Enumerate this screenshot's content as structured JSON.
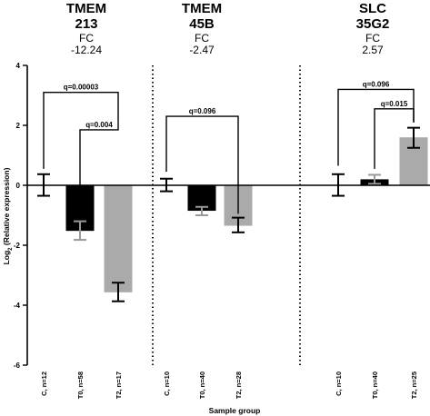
{
  "chart_data": {
    "type": "bar",
    "ylabel_prefix": "Log",
    "ylabel_sub": "2",
    "ylabel_suffix": " (Relative expression)",
    "xlabel": "Sample group",
    "ylim": [
      -6,
      4
    ],
    "yticks": [
      4,
      2,
      0,
      -2,
      -4,
      -6
    ],
    "grid": false,
    "panels": [
      {
        "title_line1": "TMEM",
        "title_line2": "213",
        "fc_label": "FC",
        "fc_value": "-12.24",
        "bars": [
          {
            "label": "C, n=12",
            "value": 0.0,
            "err_low": -0.35,
            "err_high": 0.37,
            "color": "#ffffff",
            "errcolor": "#000000"
          },
          {
            "label": "T0, n=58",
            "value": -1.52,
            "err_low": -1.82,
            "err_high": -1.2,
            "color": "#000000",
            "errcolor": "#999999"
          },
          {
            "label": "T2, n=17",
            "value": -3.57,
            "err_low": -3.87,
            "err_high": -3.25,
            "color": "#aaaaaa",
            "errcolor": "#000000"
          }
        ],
        "brackets": [
          {
            "from": 0,
            "to": 2,
            "y": 3.1,
            "drop_from": 0.55,
            "drop_to": 2.1,
            "label": "q=0.00003"
          },
          {
            "from": 1,
            "to": 2,
            "y": 1.85,
            "drop_from": -1.05,
            "drop_to": 2.1,
            "label": "q=0.004"
          }
        ]
      },
      {
        "title_line1": "TMEM",
        "title_line2": "45B",
        "fc_label": "FC",
        "fc_value": "-2.47",
        "bars": [
          {
            "label": "C, n=10",
            "value": 0.0,
            "err_low": -0.2,
            "err_high": 0.22,
            "color": "#ffffff",
            "errcolor": "#000000"
          },
          {
            "label": "T0, n=40",
            "value": -0.85,
            "err_low": -1.0,
            "err_high": -0.72,
            "color": "#000000",
            "errcolor": "#999999"
          },
          {
            "label": "T2, n=28",
            "value": -1.35,
            "err_low": -1.57,
            "err_high": -1.08,
            "color": "#aaaaaa",
            "errcolor": "#000000"
          }
        ],
        "brackets": [
          {
            "from": 0,
            "to": 2,
            "y": 2.3,
            "drop_from": 0.45,
            "drop_to": -0.95,
            "label": "q=0.096"
          }
        ]
      },
      {
        "title_line1": "SLC",
        "title_line2": "35G2",
        "fc_label": "FC",
        "fc_value": "2.57",
        "bars": [
          {
            "label": "C, n=10",
            "value": 0.0,
            "err_low": -0.35,
            "err_high": 0.37,
            "color": "#ffffff",
            "errcolor": "#000000"
          },
          {
            "label": "T0, n=40",
            "value": 0.2,
            "err_low": 0.05,
            "err_high": 0.35,
            "color": "#000000",
            "errcolor": "#999999"
          },
          {
            "label": "T2, n=25",
            "value": 1.6,
            "err_low": 1.25,
            "err_high": 1.92,
            "color": "#aaaaaa",
            "errcolor": "#000000"
          }
        ],
        "brackets": [
          {
            "from": 0,
            "to": 2,
            "y": 3.2,
            "drop_from": 0.65,
            "drop_to": 2.1,
            "label": "q=0.096"
          },
          {
            "from": 1,
            "to": 2,
            "y": 2.55,
            "drop_from": 0.55,
            "drop_to": 2.1,
            "label": "q=0.015"
          }
        ]
      }
    ]
  }
}
